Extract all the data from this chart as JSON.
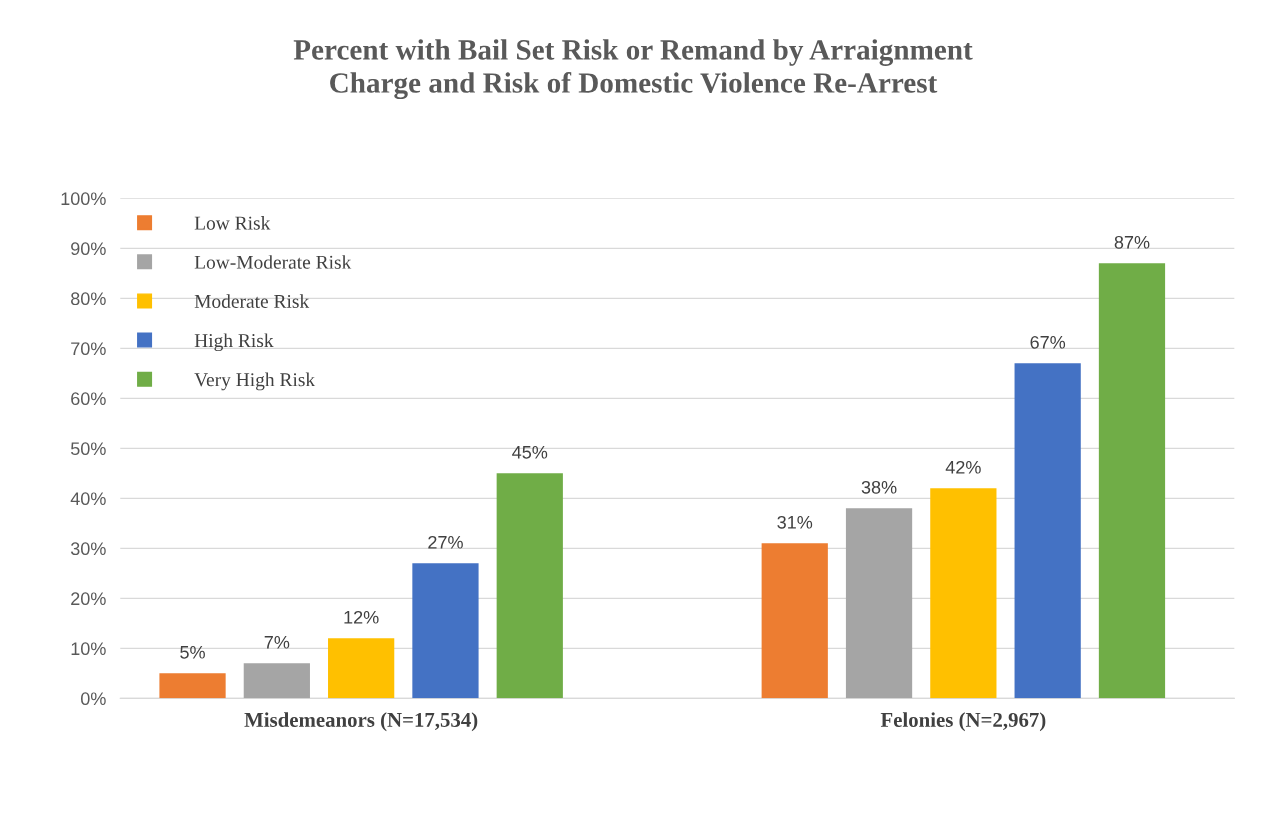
{
  "chart_data": {
    "type": "bar",
    "title": "Percent with Bail Set Risk or Remand by Arraignment\nCharge and Risk of Domestic Violence Re-Arrest",
    "categories": [
      "Misdemeanors (N=17,534)",
      "Felonies (N=2,967)"
    ],
    "series": [
      {
        "name": "Low Risk",
        "color": "#ed7d31",
        "values": [
          5,
          31
        ],
        "value_labels": [
          "5%",
          "31%"
        ]
      },
      {
        "name": "Low-Moderate Risk",
        "color": "#a5a5a5",
        "values": [
          7,
          38
        ],
        "value_labels": [
          "7%",
          "38%"
        ]
      },
      {
        "name": "Moderate Risk",
        "color": "#ffc000",
        "values": [
          12,
          42
        ],
        "value_labels": [
          "12%",
          "42%"
        ]
      },
      {
        "name": "High Risk",
        "color": "#4472c4",
        "values": [
          27,
          67
        ],
        "value_labels": [
          "27%",
          "67%"
        ]
      },
      {
        "name": "Very High Risk",
        "color": "#70ad47",
        "values": [
          45,
          87
        ],
        "value_labels": [
          "45%",
          "87%"
        ]
      }
    ],
    "ylim": [
      0,
      100
    ],
    "yticks": [
      {
        "value": 0,
        "label": "0%"
      },
      {
        "value": 10,
        "label": "10%"
      },
      {
        "value": 20,
        "label": "20%"
      },
      {
        "value": 30,
        "label": "30%"
      },
      {
        "value": 40,
        "label": "40%"
      },
      {
        "value": 50,
        "label": "50%"
      },
      {
        "value": 60,
        "label": "60%"
      },
      {
        "value": 70,
        "label": "70%"
      },
      {
        "value": 80,
        "label": "80%"
      },
      {
        "value": 90,
        "label": "90%"
      },
      {
        "value": 100,
        "label": "100%"
      }
    ],
    "grid": "y",
    "legend": "top left"
  }
}
